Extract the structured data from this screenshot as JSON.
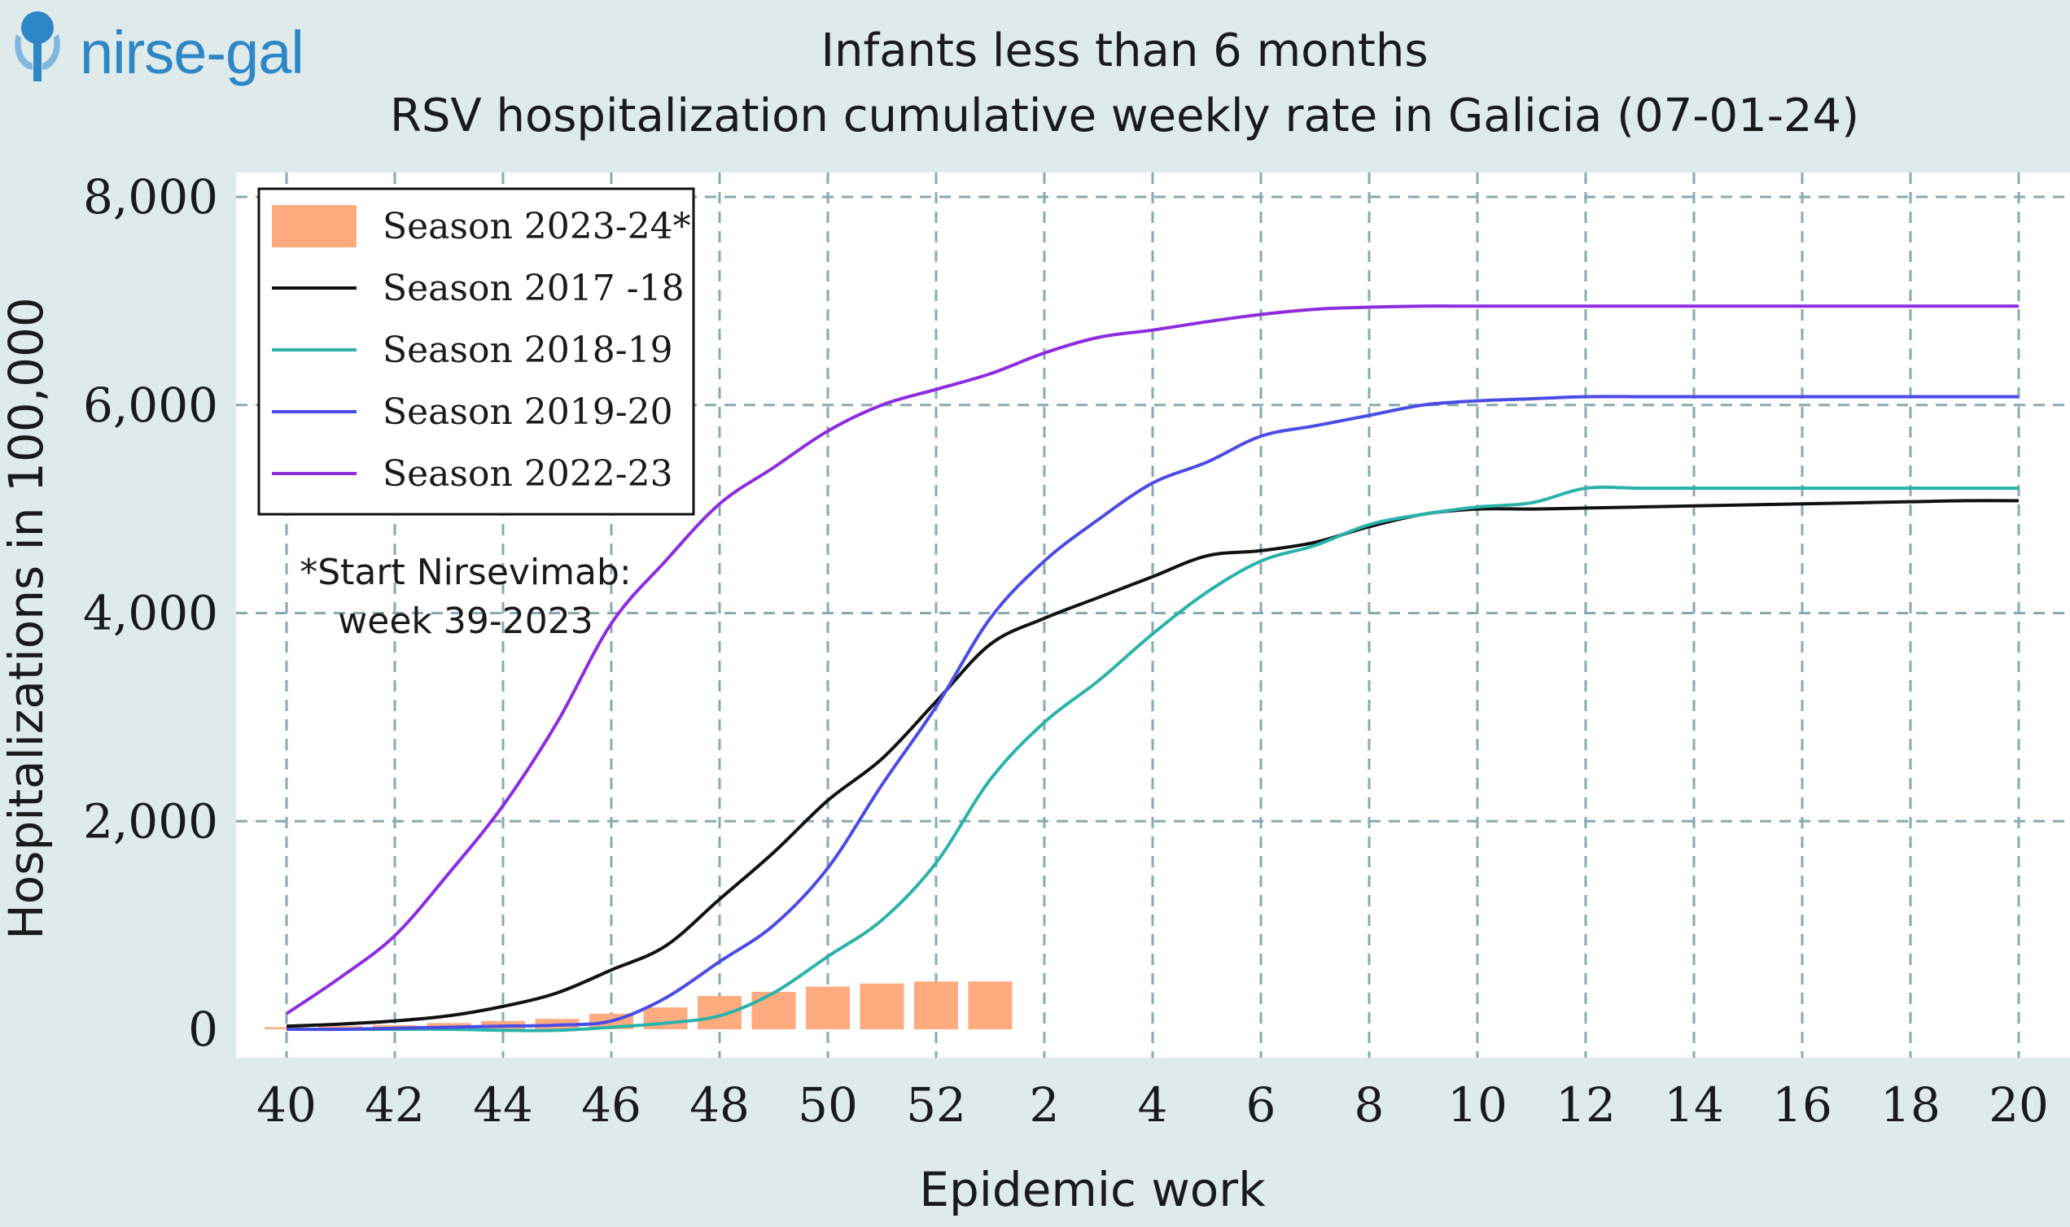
{
  "logo": {
    "text": "nirse-gal",
    "icon": "syringe-icon",
    "color": "#2d86c6"
  },
  "chart_data": {
    "type": "line",
    "title": "Infants less than 6 months",
    "subtitle": "RSV hospitalization cumulative weekly rate in Galicia (07-01-24)",
    "xlabel": "Epidemic work",
    "ylabel": "Hospitalizations in 100,000",
    "ylim": [
      0,
      8000
    ],
    "yticks": [
      "0",
      "2,000",
      "4,000",
      "6,000",
      "8,000"
    ],
    "xticks": [
      "40",
      "42",
      "44",
      "46",
      "48",
      "50",
      "52",
      "2",
      "4",
      "6",
      "8",
      "10",
      "12",
      "14",
      "16",
      "18",
      "20"
    ],
    "grid": true,
    "legend_position": "top-left",
    "annotation": [
      "*Start Nirsevimab:",
      "week 39-2023"
    ],
    "bars": {
      "name": "Season 2023-24*",
      "color": "#ffab80",
      "weeks": [
        "40",
        "41",
        "42",
        "43",
        "44",
        "45",
        "46",
        "47",
        "48",
        "49",
        "50",
        "51",
        "52",
        "1"
      ],
      "values": [
        20,
        30,
        40,
        60,
        80,
        100,
        150,
        210,
        320,
        360,
        410,
        440,
        460,
        460
      ]
    },
    "series": [
      {
        "name": "Season 2017 -18",
        "color": "#111111",
        "weeks": [
          "40",
          "41",
          "42",
          "43",
          "44",
          "45",
          "46",
          "47",
          "48",
          "49",
          "50",
          "51",
          "52",
          "1",
          "2",
          "3",
          "4",
          "5",
          "6",
          "7",
          "8",
          "9",
          "10",
          "11",
          "12",
          "13",
          "14",
          "15",
          "16",
          "17",
          "18",
          "19",
          "20"
        ],
        "values": [
          30,
          50,
          80,
          130,
          220,
          350,
          570,
          800,
          1250,
          1700,
          2200,
          2600,
          3150,
          3700,
          3950,
          4150,
          4350,
          4550,
          4600,
          4680,
          4830,
          4950,
          5000,
          5000,
          5010,
          5020,
          5030,
          5040,
          5050,
          5060,
          5070,
          5080,
          5080
        ]
      },
      {
        "name": "Season 2018-19",
        "color": "#2ab3aa",
        "weeks": [
          "40",
          "41",
          "42",
          "43",
          "44",
          "45",
          "46",
          "47",
          "48",
          "49",
          "50",
          "51",
          "52",
          "1",
          "2",
          "3",
          "4",
          "5",
          "6",
          "7",
          "8",
          "9",
          "10",
          "11",
          "12",
          "13",
          "14",
          "15",
          "16",
          "17",
          "18",
          "19",
          "20"
        ],
        "values": [
          0,
          0,
          0,
          0,
          -10,
          -10,
          20,
          60,
          130,
          350,
          700,
          1050,
          1600,
          2400,
          2950,
          3350,
          3800,
          4200,
          4500,
          4650,
          4850,
          4950,
          5020,
          5060,
          5200,
          5200,
          5200,
          5200,
          5200,
          5200,
          5200,
          5200,
          5200
        ]
      },
      {
        "name": "Season 2019-20",
        "color": "#4b4be6",
        "weeks": [
          "40",
          "41",
          "42",
          "43",
          "44",
          "45",
          "46",
          "47",
          "48",
          "49",
          "50",
          "51",
          "52",
          "1",
          "2",
          "3",
          "4",
          "5",
          "6",
          "7",
          "8",
          "9",
          "10",
          "11",
          "12",
          "13",
          "14",
          "15",
          "16",
          "17",
          "18",
          "19",
          "20"
        ],
        "values": [
          0,
          0,
          10,
          20,
          30,
          40,
          80,
          300,
          650,
          1000,
          1550,
          2350,
          3100,
          3950,
          4500,
          4900,
          5250,
          5450,
          5700,
          5800,
          5900,
          6000,
          6040,
          6060,
          6080,
          6080,
          6080,
          6080,
          6080,
          6080,
          6080,
          6080,
          6080
        ]
      },
      {
        "name": "Season 2022-23",
        "color": "#8e2ce0",
        "weeks": [
          "40",
          "41",
          "42",
          "43",
          "44",
          "45",
          "46",
          "47",
          "48",
          "49",
          "50",
          "51",
          "52",
          "1",
          "2",
          "3",
          "4",
          "5",
          "6",
          "7",
          "8",
          "9",
          "10",
          "11",
          "12",
          "13",
          "14",
          "15",
          "16",
          "17",
          "18",
          "19",
          "20"
        ],
        "values": [
          150,
          500,
          900,
          1500,
          2150,
          2950,
          3900,
          4500,
          5050,
          5400,
          5750,
          6000,
          6150,
          6300,
          6500,
          6650,
          6720,
          6800,
          6870,
          6920,
          6940,
          6950,
          6950,
          6950,
          6950,
          6950,
          6950,
          6950,
          6950,
          6950,
          6950,
          6950,
          6950
        ]
      }
    ]
  }
}
